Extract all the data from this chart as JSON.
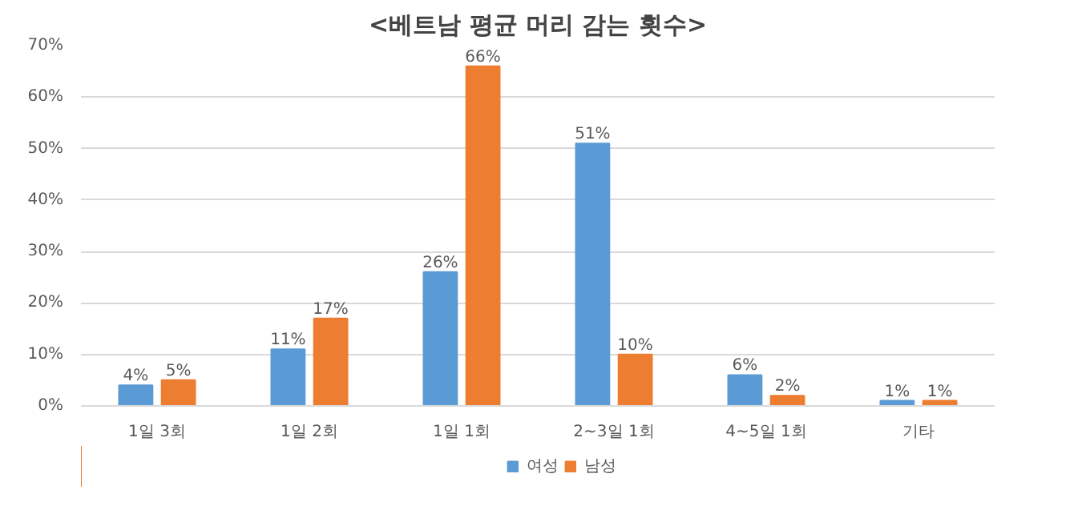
{
  "chart_data": {
    "type": "bar",
    "title": "<베트남 평균 머리 감는 횟수>",
    "categories": [
      "1일 3회",
      "1일 2회",
      "1일 1회",
      "2~3일 1회",
      "4~5일 1회",
      "기타"
    ],
    "series": [
      {
        "name": "여성",
        "color": "#5b9bd5",
        "values": [
          4,
          11,
          26,
          51,
          6,
          1
        ],
        "value_labels": [
          "4%",
          "11%",
          "26%",
          "51%",
          "6%",
          "1%"
        ]
      },
      {
        "name": "남성",
        "color": "#ed7d31",
        "values": [
          5,
          17,
          66,
          10,
          2,
          1
        ],
        "value_labels": [
          "5%",
          "17%",
          "66%",
          "10%",
          "2%",
          "1%"
        ]
      }
    ],
    "ylim": [
      0,
      70
    ],
    "yticks": [
      {
        "value": 0,
        "label": "0%"
      },
      {
        "value": 10,
        "label": "10%"
      },
      {
        "value": 20,
        "label": "20%"
      },
      {
        "value": 30,
        "label": "30%"
      },
      {
        "value": 40,
        "label": "40%"
      },
      {
        "value": 50,
        "label": "50%"
      },
      {
        "value": 60,
        "label": "60%"
      },
      {
        "value": 70,
        "label": "70%"
      }
    ],
    "grid": "y",
    "legend": "bottom"
  }
}
